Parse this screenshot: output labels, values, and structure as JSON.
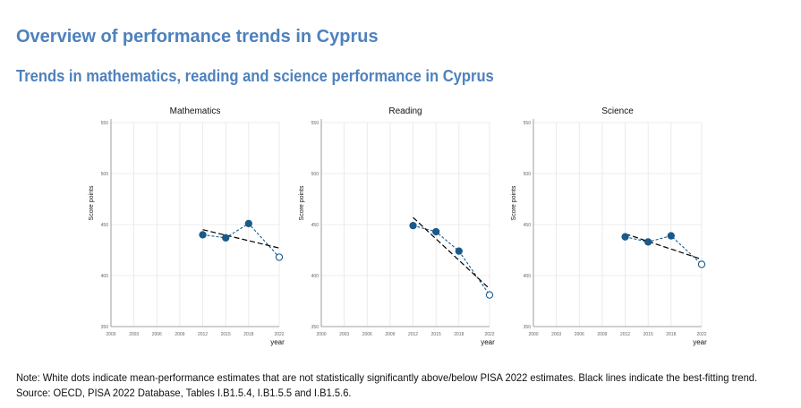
{
  "page": {
    "title": "Overview of performance trends in Cyprus",
    "subtitle": "Trends in mathematics, reading and science performance in Cyprus",
    "note": "Note: White dots indicate mean-performance estimates that are not statistically significantly above/below PISA 2022 estimates. Black lines indicate the best-fitting trend.",
    "source": "Source: OECD, PISA 2022 Database, Tables I.B1.5.4, I.B1.5.5 and I.B1.5.6."
  },
  "colors": {
    "heading": "#4e81bd",
    "series": "#1a5a8a",
    "trend": "#000000",
    "grid": "#e6e6e6"
  },
  "chart_data": [
    {
      "type": "line",
      "title": "Mathematics",
      "ylabel": "Score points",
      "xlabel": "year",
      "xticks": [
        2000,
        2003,
        2006,
        2009,
        2012,
        2015,
        2018,
        2022
      ],
      "yticks": [
        350,
        400,
        450,
        500,
        550
      ],
      "xlim": [
        2000,
        2022
      ],
      "ylim": [
        350,
        550
      ],
      "grid": true,
      "series": [
        {
          "x": [
            2012,
            2015,
            2018,
            2022
          ],
          "y": [
            440,
            437,
            451,
            418
          ],
          "significant": [
            true,
            true,
            true,
            false
          ]
        }
      ],
      "trend": {
        "x": [
          2012,
          2022
        ],
        "y": [
          445,
          427
        ]
      }
    },
    {
      "type": "line",
      "title": "Reading",
      "ylabel": "Score points",
      "xlabel": "year",
      "xticks": [
        2000,
        2003,
        2006,
        2009,
        2012,
        2015,
        2018,
        2022
      ],
      "yticks": [
        350,
        400,
        450,
        500,
        550
      ],
      "xlim": [
        2000,
        2022
      ],
      "ylim": [
        350,
        550
      ],
      "grid": true,
      "series": [
        {
          "x": [
            2012,
            2015,
            2018,
            2022
          ],
          "y": [
            449,
            443,
            424,
            381
          ],
          "significant": [
            true,
            true,
            true,
            false
          ]
        }
      ],
      "trend": {
        "x": [
          2012,
          2022
        ],
        "y": [
          457,
          387
        ]
      }
    },
    {
      "type": "line",
      "title": "Science",
      "ylabel": "Score points",
      "xlabel": "year",
      "xticks": [
        2000,
        2003,
        2006,
        2009,
        2012,
        2015,
        2018,
        2022
      ],
      "yticks": [
        350,
        400,
        450,
        500,
        550
      ],
      "xlim": [
        2000,
        2022
      ],
      "ylim": [
        350,
        550
      ],
      "grid": true,
      "series": [
        {
          "x": [
            2012,
            2015,
            2018,
            2022
          ],
          "y": [
            438,
            433,
            439,
            411
          ],
          "significant": [
            true,
            true,
            true,
            false
          ]
        }
      ],
      "trend": {
        "x": [
          2012,
          2022
        ],
        "y": [
          441,
          416
        ]
      }
    }
  ]
}
